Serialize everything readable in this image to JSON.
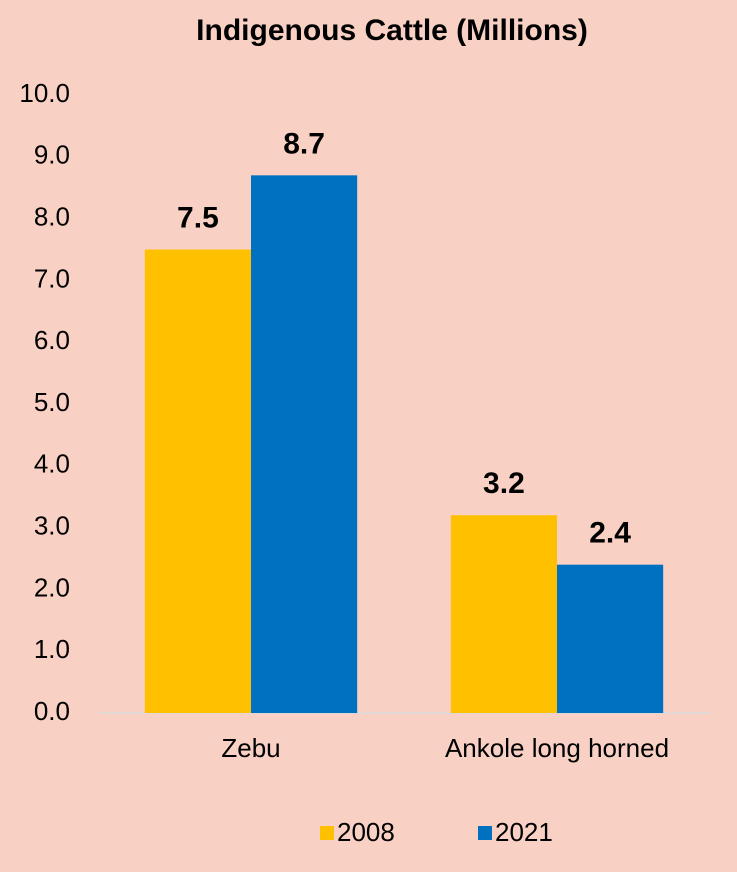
{
  "chart_data": {
    "type": "bar",
    "title": "Indigenous Cattle (Millions)",
    "categories": [
      "Zebu",
      "Ankole long horned"
    ],
    "series": [
      {
        "name": "2008",
        "color": "#ffc000",
        "values": [
          7.5,
          3.2
        ]
      },
      {
        "name": "2021",
        "color": "#0070c0",
        "values": [
          8.7,
          2.4
        ]
      }
    ],
    "ylim": [
      0,
      10
    ],
    "yticks": [
      {
        "value": 0,
        "label": "0.0"
      },
      {
        "value": 1,
        "label": "1.0"
      },
      {
        "value": 2,
        "label": "2.0"
      },
      {
        "value": 3,
        "label": "3.0"
      },
      {
        "value": 4,
        "label": "4.0"
      },
      {
        "value": 5,
        "label": "5.0"
      },
      {
        "value": 6,
        "label": "6.0"
      },
      {
        "value": 7,
        "label": "7.0"
      },
      {
        "value": 8,
        "label": "8.0"
      },
      {
        "value": 9,
        "label": "9.0"
      },
      {
        "value": 10,
        "label": "10.0"
      }
    ],
    "legend": "bottom"
  }
}
